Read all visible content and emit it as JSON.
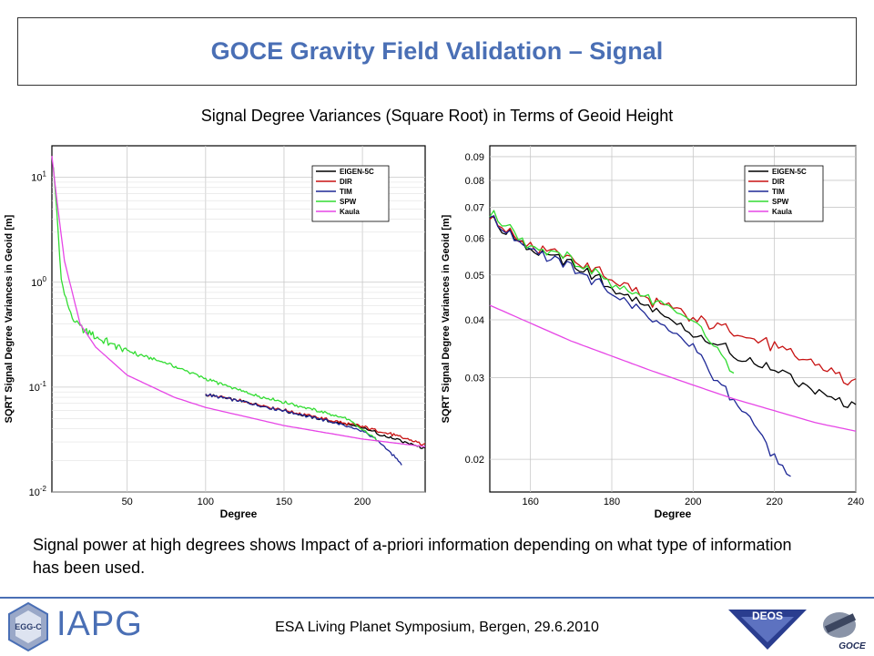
{
  "header": {
    "title": "GOCE Gravity Field Validation – Signal"
  },
  "subtitle": "Signal Degree Variances (Square Root) in Terms of Geoid Height",
  "caption": "Signal power at high degrees shows Impact of a-priori information depending on what type of information has been used.",
  "footer": {
    "event": "ESA Living Planet Symposium, Bergen, 29.6.2010",
    "logo_iapg": "IAPG",
    "logo_egg": "EGG-C",
    "logo_deos": "DEOS",
    "logo_goce": "GOCE"
  },
  "colors": {
    "EIGEN-5C": "#000000",
    "DIR": "#c81414",
    "TIM": "#1e2896",
    "SPW": "#32dc32",
    "Kaula": "#e646e6",
    "accent": "#4a6fb5"
  },
  "chart_data": [
    {
      "type": "line",
      "yscale": "log",
      "xlabel": "Degree",
      "ylabel": "SQRT Signal Degree Variances in Geoid [m]",
      "xlim": [
        2,
        240
      ],
      "ylim": [
        0.01,
        20
      ],
      "xticks": [
        50,
        100,
        150,
        200
      ],
      "yticks": [
        {
          "value": 10,
          "label": "10^1"
        },
        {
          "value": 1,
          "label": "10^0"
        },
        {
          "value": 0.1,
          "label": "10^-1"
        },
        {
          "value": 0.01,
          "label": "10^-2"
        }
      ],
      "grid": true,
      "legend": "top-right",
      "series": [
        {
          "name": "EIGEN-5C",
          "x": [
            100,
            120,
            140,
            160,
            180,
            200,
            220,
            240
          ],
          "values": [
            0.085,
            0.075,
            0.064,
            0.055,
            0.047,
            0.041,
            0.032,
            0.026
          ]
        },
        {
          "name": "DIR",
          "x": [
            100,
            120,
            140,
            160,
            180,
            200,
            220,
            240
          ],
          "values": [
            0.085,
            0.075,
            0.065,
            0.056,
            0.048,
            0.042,
            0.035,
            0.028
          ]
        },
        {
          "name": "TIM",
          "x": [
            100,
            120,
            140,
            160,
            180,
            200,
            210,
            220,
            225
          ],
          "values": [
            0.085,
            0.075,
            0.064,
            0.055,
            0.047,
            0.038,
            0.031,
            0.022,
            0.018
          ]
        },
        {
          "name": "SPW",
          "x": [
            3,
            5,
            8,
            12,
            15,
            20,
            30,
            50,
            75,
            100,
            130,
            160,
            190,
            210
          ],
          "values": [
            13,
            5,
            1.05,
            0.6,
            0.45,
            0.37,
            0.3,
            0.22,
            0.17,
            0.12,
            0.085,
            0.066,
            0.05,
            0.031
          ]
        },
        {
          "name": "Kaula",
          "x": [
            2,
            5,
            10,
            20,
            30,
            50,
            80,
            100,
            150,
            200,
            240
          ],
          "values": [
            16,
            6.4,
            1.6,
            0.4,
            0.24,
            0.13,
            0.08,
            0.064,
            0.043,
            0.032,
            0.027
          ]
        }
      ]
    },
    {
      "type": "line",
      "yscale": "log",
      "xlabel": "Degree",
      "ylabel": "SQRT Signal Degree Variances in Geoid [m]",
      "xlim": [
        150,
        240
      ],
      "ylim": [
        0.017,
        0.095
      ],
      "xticks": [
        160,
        180,
        200,
        220,
        240
      ],
      "yticks": [
        0.02,
        0.03,
        0.04,
        0.05,
        0.06,
        0.07,
        0.08,
        0.09
      ],
      "grid": true,
      "legend": "top-right",
      "series": [
        {
          "name": "EIGEN-5C",
          "x": [
            150,
            160,
            170,
            180,
            190,
            200,
            210,
            220,
            230,
            240
          ],
          "values": [
            0.066,
            0.057,
            0.053,
            0.047,
            0.042,
            0.037,
            0.034,
            0.031,
            0.028,
            0.026
          ]
        },
        {
          "name": "DIR",
          "x": [
            150,
            160,
            170,
            180,
            190,
            200,
            210,
            220,
            230,
            240
          ],
          "values": [
            0.066,
            0.058,
            0.054,
            0.049,
            0.044,
            0.04,
            0.038,
            0.035,
            0.032,
            0.029
          ]
        },
        {
          "name": "TIM",
          "x": [
            150,
            160,
            170,
            180,
            190,
            200,
            205,
            210,
            215,
            220,
            224
          ],
          "values": [
            0.066,
            0.057,
            0.052,
            0.046,
            0.04,
            0.035,
            0.03,
            0.027,
            0.024,
            0.02,
            0.018
          ]
        },
        {
          "name": "SPW",
          "x": [
            150,
            160,
            170,
            180,
            190,
            200,
            210
          ],
          "values": [
            0.068,
            0.058,
            0.054,
            0.048,
            0.044,
            0.04,
            0.031
          ]
        },
        {
          "name": "Kaula",
          "x": [
            150,
            170,
            190,
            210,
            230,
            240
          ],
          "values": [
            0.043,
            0.036,
            0.031,
            0.027,
            0.024,
            0.023
          ]
        }
      ]
    }
  ]
}
